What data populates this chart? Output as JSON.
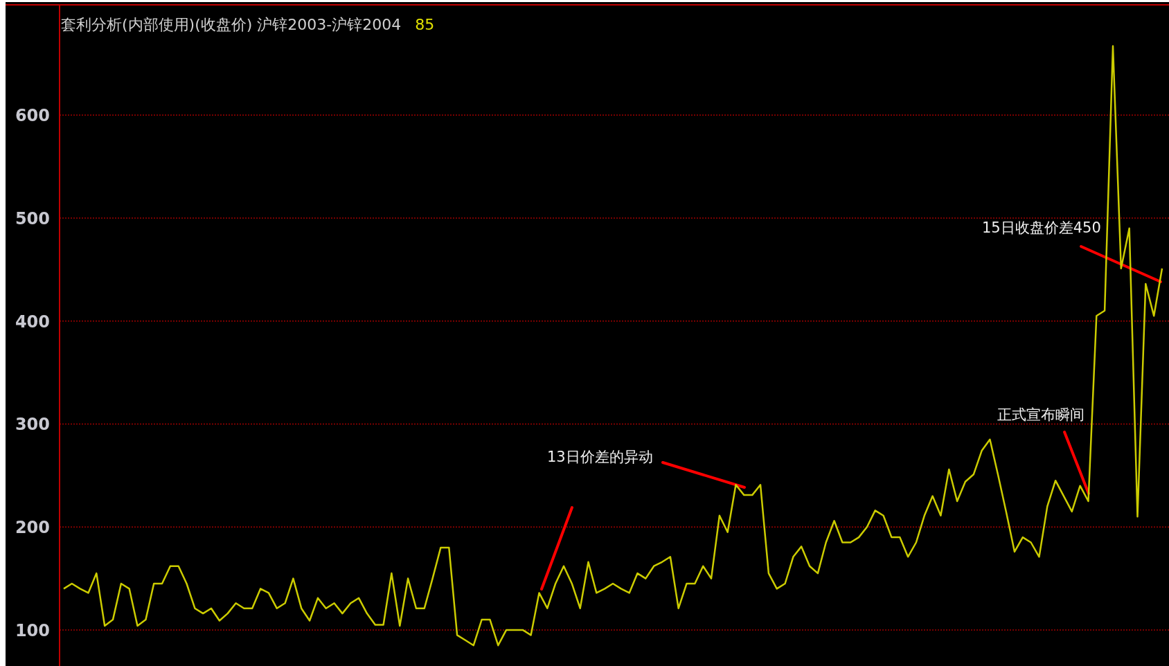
{
  "chart_data": {
    "type": "line",
    "title": "套利分析(内部使用)(收盘价) 沪锌2003-沪锌2004",
    "subtitle": "85",
    "categories": [
      null,
      null,
      null,
      null,
      null,
      null,
      null,
      null,
      null,
      null,
      null,
      null,
      null,
      null,
      null,
      null,
      null,
      null,
      null,
      null,
      null,
      null,
      null,
      null,
      null,
      null,
      null,
      null,
      null,
      null,
      null,
      null,
      null,
      null,
      null,
      null,
      null,
      null,
      null,
      null,
      null,
      null,
      null,
      null,
      null,
      null,
      null,
      null,
      null,
      null,
      null,
      null,
      null,
      null,
      null,
      null,
      null,
      null,
      null,
      null,
      null,
      null,
      null,
      null,
      null,
      null,
      null,
      null,
      null,
      null,
      null,
      null,
      null,
      null,
      null,
      null,
      null,
      null,
      null,
      null,
      null,
      null,
      null,
      null,
      null,
      null,
      null,
      null,
      null,
      null,
      null,
      null,
      null,
      null,
      null,
      null,
      null,
      null,
      null,
      null,
      null,
      null,
      null,
      null,
      null,
      null,
      null,
      null,
      null,
      null,
      null,
      null,
      null,
      null,
      null,
      null,
      null,
      null,
      null,
      null,
      null,
      null,
      null,
      null,
      null,
      null,
      null,
      null,
      null,
      null,
      null,
      null,
      null,
      null,
      null
    ],
    "values": [
      140,
      145,
      140,
      136,
      155,
      104,
      110,
      145,
      140,
      104,
      110,
      145,
      145,
      162,
      162,
      145,
      121,
      116,
      121,
      109,
      116,
      126,
      121,
      121,
      140,
      136,
      121,
      126,
      150,
      121,
      109,
      131,
      121,
      126,
      116,
      126,
      131,
      116,
      105,
      105,
      155,
      104,
      150,
      121,
      121,
      150,
      180,
      180,
      95,
      90,
      85,
      110,
      110,
      85,
      100,
      100,
      100,
      95,
      136,
      121,
      145,
      162,
      145,
      121,
      166,
      136,
      140,
      145,
      140,
      136,
      155,
      150,
      162,
      166,
      171,
      121,
      145,
      145,
      162,
      150,
      211,
      195,
      241,
      231,
      231,
      241,
      155,
      140,
      145,
      171,
      181,
      162,
      155,
      185,
      206,
      185,
      185,
      190,
      200,
      216,
      211,
      190,
      190,
      171,
      185,
      211,
      230,
      211,
      256,
      225,
      244,
      251,
      274,
      285,
      250,
      214,
      176,
      190,
      185,
      171,
      220,
      245,
      230,
      215,
      240,
      225,
      405,
      410,
      667,
      451,
      490,
      210,
      436,
      405,
      451
    ],
    "color": "#cccc00",
    "ylim": [
      65,
      707
    ],
    "yticks": [
      100,
      200,
      300,
      400,
      500,
      600
    ],
    "grid": "y",
    "marker": "none",
    "line_style": "solid",
    "annotations": [
      "13日价差的异动",
      "正式宣布瞬间",
      "15日收盘价差450"
    ]
  }
}
